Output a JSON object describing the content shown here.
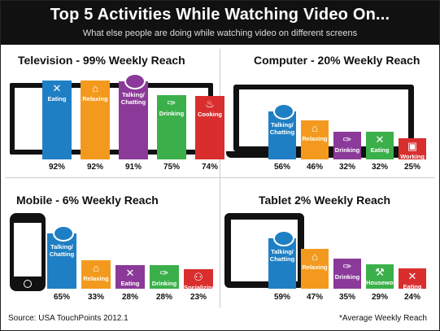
{
  "header": {
    "title": "Top 5 Activities While Watching Video On...",
    "subtitle": "What else people are doing while watching video on different screens"
  },
  "footer": {
    "source": "Source: USA TouchPoints 2012.1",
    "note": "*Average Weekly Reach"
  },
  "colors": {
    "blue": "#1F7FC4",
    "orange": "#F39A1E",
    "purple": "#8B3A99",
    "green": "#3BB04A",
    "red": "#D92E2E"
  },
  "chart_data": [
    {
      "type": "bar",
      "title": "Television - 99% Weekly Reach",
      "categories": [
        "Eating",
        "Relaxing",
        "Talking/ Chatting",
        "Drinking",
        "Cooking"
      ],
      "values": [
        92,
        92,
        91,
        75,
        74
      ],
      "value_labels": [
        "92%",
        "92%",
        "91%",
        "75%",
        "74%"
      ],
      "colors": [
        "#1F7FC4",
        "#F39A1E",
        "#8B3A99",
        "#3BB04A",
        "#D92E2E"
      ],
      "icons": [
        "fork-knife-icon",
        "armchair-icon",
        "speech-bubble-icon",
        "drink-glass-icon",
        "cooking-pot-icon"
      ]
    },
    {
      "type": "bar",
      "title": "Computer - 20% Weekly Reach",
      "categories": [
        "Talking/ Chatting",
        "Relaxing",
        "Drinking",
        "Eating",
        "Working"
      ],
      "values": [
        56,
        46,
        32,
        32,
        25
      ],
      "value_labels": [
        "56%",
        "46%",
        "32%",
        "32%",
        "25%"
      ],
      "colors": [
        "#1F7FC4",
        "#F39A1E",
        "#8B3A99",
        "#3BB04A",
        "#D92E2E"
      ],
      "icons": [
        "speech-bubble-icon",
        "armchair-icon",
        "drink-glass-icon",
        "fork-knife-icon",
        "briefcase-icon"
      ]
    },
    {
      "type": "bar",
      "title": "Mobile - 6% Weekly Reach",
      "categories": [
        "Talking/ Chatting",
        "Relaxing",
        "Eating",
        "Drinking",
        "Socializing"
      ],
      "values": [
        65,
        33,
        28,
        28,
        23
      ],
      "value_labels": [
        "65%",
        "33%",
        "28%",
        "28%",
        "23%"
      ],
      "colors": [
        "#1F7FC4",
        "#F39A1E",
        "#8B3A99",
        "#3BB04A",
        "#D92E2E"
      ],
      "icons": [
        "speech-bubble-icon",
        "armchair-icon",
        "fork-knife-icon",
        "drink-glass-icon",
        "people-icon"
      ]
    },
    {
      "type": "bar",
      "title": "Tablet 2% Weekly Reach",
      "categories": [
        "Talking/ Chatting",
        "Relaxing",
        "Drinking",
        "Housework",
        "Eating"
      ],
      "values": [
        59,
        47,
        35,
        29,
        24
      ],
      "value_labels": [
        "59%",
        "47%",
        "35%",
        "29%",
        "24%"
      ],
      "colors": [
        "#1F7FC4",
        "#F39A1E",
        "#8B3A99",
        "#3BB04A",
        "#D92E2E"
      ],
      "icons": [
        "speech-bubble-icon",
        "armchair-icon",
        "drink-glass-icon",
        "vacuum-icon",
        "fork-knife-icon"
      ]
    }
  ]
}
